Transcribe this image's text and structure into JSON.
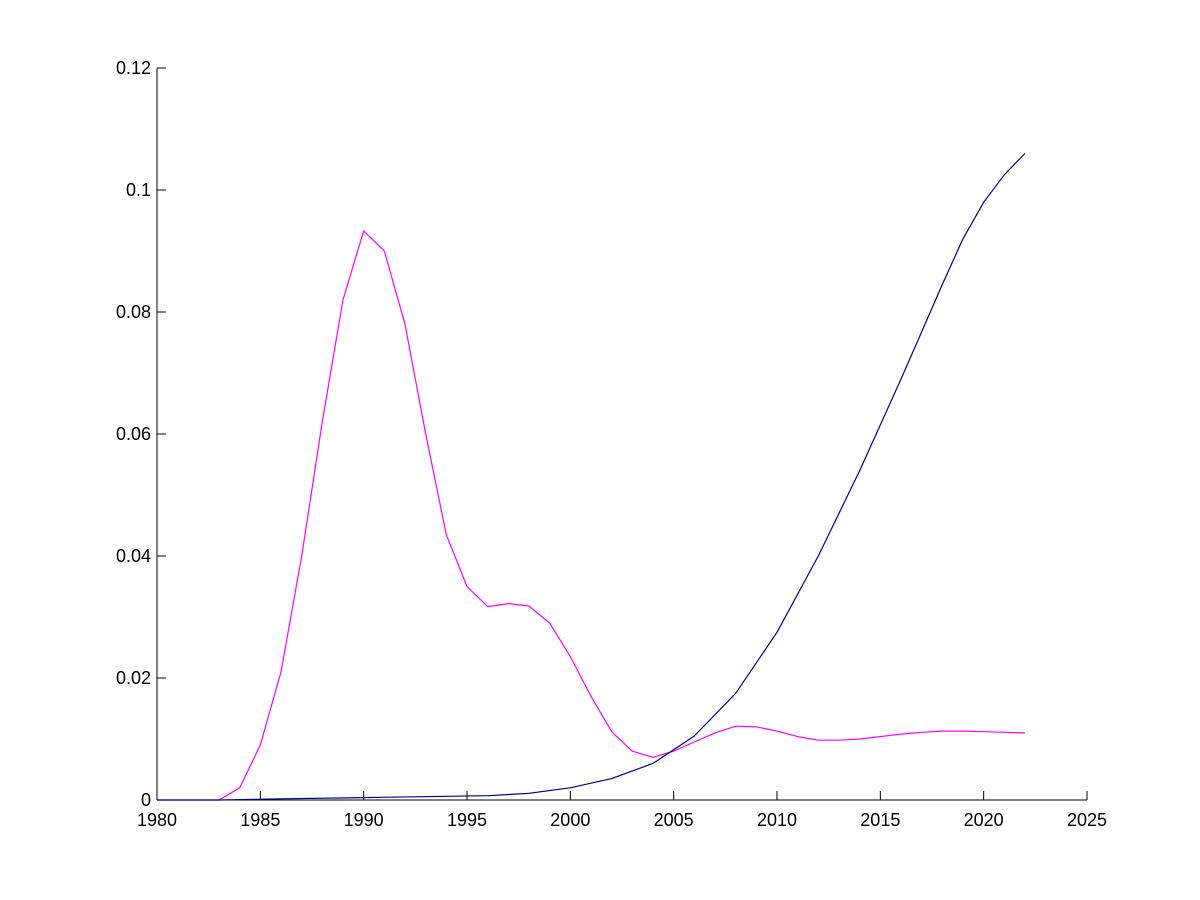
{
  "chart_data": {
    "type": "line",
    "title": "",
    "xlabel": "",
    "ylabel": "",
    "xlim": [
      1980,
      2025
    ],
    "ylim": [
      0,
      0.12
    ],
    "grid": false,
    "x_ticks": [
      1980,
      1985,
      1990,
      1995,
      2000,
      2005,
      2010,
      2015,
      2020,
      2025
    ],
    "x_tick_labels": [
      "1980",
      "1985",
      "1990",
      "1995",
      "2000",
      "2005",
      "2010",
      "2015",
      "2020",
      "2025"
    ],
    "y_ticks": [
      0,
      0.02,
      0.04,
      0.06,
      0.08,
      0.1,
      0.12
    ],
    "y_tick_labels": [
      "0",
      "0.02",
      "0.04",
      "0.06",
      "0.08",
      "0.1",
      "0.12"
    ],
    "series": [
      {
        "color": "#ff00ff",
        "x": [
          1980,
          1981,
          1982,
          1983,
          1984,
          1985,
          1986,
          1987,
          1988,
          1989,
          1990,
          1991,
          1992,
          1993,
          1994,
          1995,
          1996,
          1997,
          1998,
          1999,
          2000,
          2001,
          2002,
          2003,
          2004,
          2005,
          2006,
          2007,
          2008,
          2009,
          2010,
          2011,
          2012,
          2013,
          2014,
          2015,
          2016,
          2017,
          2018,
          2019,
          2020,
          2021,
          2022
        ],
        "values": [
          0,
          0,
          0,
          0,
          0.002,
          0.009,
          0.021,
          0.04,
          0.062,
          0.082,
          0.0933,
          0.09,
          0.078,
          0.06,
          0.0435,
          0.035,
          0.0317,
          0.0322,
          0.0318,
          0.029,
          0.0235,
          0.017,
          0.0112,
          0.008,
          0.007,
          0.008,
          0.0095,
          0.011,
          0.0121,
          0.012,
          0.0113,
          0.0104,
          0.0098,
          0.0098,
          0.01,
          0.0104,
          0.0108,
          0.0111,
          0.0113,
          0.0113,
          0.0112,
          0.0111,
          0.011
        ]
      },
      {
        "color": "#00008b",
        "x": [
          1980,
          1983,
          1986,
          1990,
          1994,
          1996,
          1998,
          2000,
          2002,
          2004,
          2006,
          2008,
          2010,
          2012,
          2014,
          2016,
          2018,
          2019,
          2020,
          2021,
          2022
        ],
        "values": [
          0,
          0,
          0.0002,
          0.0004,
          0.0006,
          0.0007,
          0.0011,
          0.002,
          0.0035,
          0.006,
          0.0105,
          0.0175,
          0.0275,
          0.04,
          0.054,
          0.069,
          0.0845,
          0.092,
          0.098,
          0.1025,
          0.106
        ]
      }
    ]
  }
}
